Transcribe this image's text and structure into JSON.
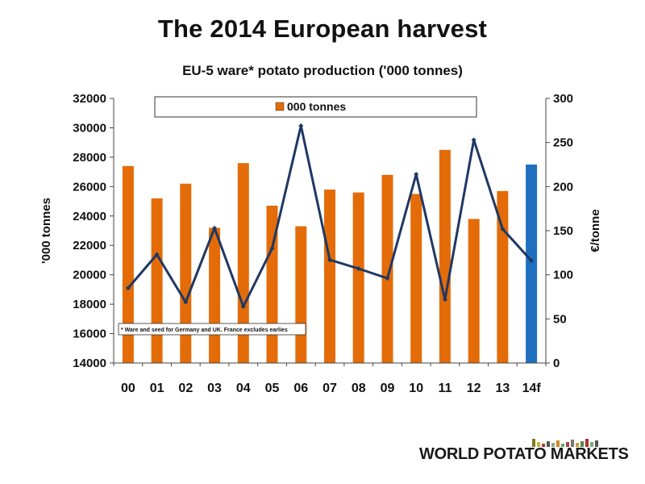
{
  "page": {
    "title": "The 2014 European harvest",
    "logo_text": "WORLD POTATO MARKETS"
  },
  "colors": {
    "bar": "#e36c09",
    "bar_highlight": "#1f6fbf",
    "line": "#1f3864"
  },
  "chart_data": {
    "type": "bar",
    "title": "EU-5 ware* potato production ('000 tonnes)",
    "ylabel": "'000 tonnes",
    "y2label": "€/tonne",
    "categories": [
      "00",
      "01",
      "02",
      "03",
      "04",
      "05",
      "06",
      "07",
      "08",
      "09",
      "10",
      "11",
      "12",
      "13",
      "14f"
    ],
    "ylim": [
      14000,
      32000
    ],
    "yticks": [
      14000,
      16000,
      18000,
      20000,
      22000,
      24000,
      26000,
      28000,
      30000,
      32000
    ],
    "y2lim": [
      0,
      300
    ],
    "y2ticks": [
      0,
      50,
      100,
      150,
      200,
      250,
      300
    ],
    "series": [
      {
        "name": "000 tonnes",
        "axis": "left",
        "type": "bar",
        "values": [
          27400,
          25200,
          26200,
          23200,
          27600,
          24700,
          23300,
          25800,
          25600,
          26800,
          25500,
          28500,
          23800,
          25700,
          27500
        ],
        "highlight_index": 14
      },
      {
        "axis": "right",
        "type": "line",
        "values": [
          85,
          123,
          69,
          153,
          64,
          130,
          269,
          117,
          107,
          96,
          214,
          72,
          253,
          152,
          116
        ]
      }
    ],
    "legend": {
      "position": "top",
      "entries": [
        "000 tonnes"
      ]
    },
    "annotations": [
      "* Ware and seed for Germany and UK. France excludes earlies"
    ],
    "grid": false
  }
}
